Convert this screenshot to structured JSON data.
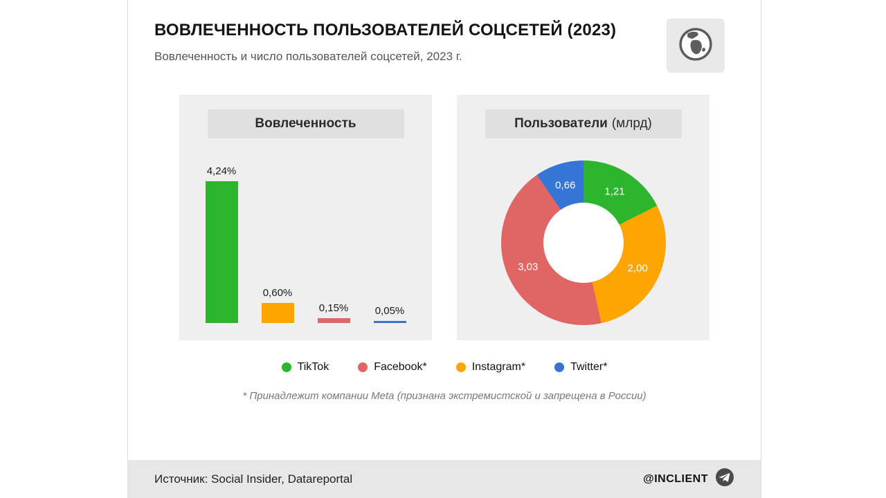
{
  "page": {
    "background": "#ffffff",
    "card_border": "#dcdcdc",
    "panel_bg": "#efefef",
    "chip_bg": "#e0e0e0",
    "footer_bg": "#e7e7e7"
  },
  "header": {
    "title": "ВОВЛЕЧЕННОСТЬ ПОЛЬЗОВАТЕЛЕЙ СОЦСЕТЕЙ (2023)",
    "subtitle": "Вовлеченность и число пользователей соцсетей, 2023 г.",
    "logo_icon": "globe-icon"
  },
  "chart_data": [
    {
      "type": "bar",
      "title": "Вовлеченность",
      "categories": [
        "TikTok",
        "Instagram*",
        "Facebook*",
        "Twitter*"
      ],
      "values": [
        4.24,
        0.6,
        0.15,
        0.05
      ],
      "labels": [
        "4,24%",
        "0,60%",
        "0,15%",
        "0,05%"
      ],
      "colors": [
        "#2db52d",
        "#ffa502",
        "#e06666",
        "#3575d5"
      ],
      "unit": "%",
      "ylim": [
        0,
        4.5
      ],
      "grid": false,
      "axes_visible": false
    },
    {
      "type": "pie",
      "subtype": "donut",
      "title": "Пользователи (млрд)",
      "title_bold": "Пользователи",
      "title_suffix": "(млрд)",
      "categories": [
        "TikTok",
        "Instagram*",
        "Facebook*",
        "Twitter*"
      ],
      "values": [
        1.21,
        2.0,
        3.03,
        0.66
      ],
      "labels": [
        "1,21",
        "2,00",
        "3,03",
        "0,66"
      ],
      "colors": [
        "#2db52d",
        "#ffa502",
        "#e06666",
        "#3575d5"
      ],
      "unit": "млрд",
      "start_angle_deg": 0,
      "direction": "clockwise",
      "label_color": "#ffffff"
    }
  ],
  "legend": [
    {
      "label": "TikTok",
      "color": "#2db52d"
    },
    {
      "label": "Facebook*",
      "color": "#e06666"
    },
    {
      "label": "Instagram*",
      "color": "#ffa502"
    },
    {
      "label": "Twitter*",
      "color": "#3575d5"
    }
  ],
  "footnote": "* Принадлежит компании Meta (признана экстремистской и запрещена в России)",
  "footer": {
    "source": "Источник: Social Insider, Datareportal",
    "brand": "@INCLIENT",
    "brand_icon": "telegram-icon"
  }
}
